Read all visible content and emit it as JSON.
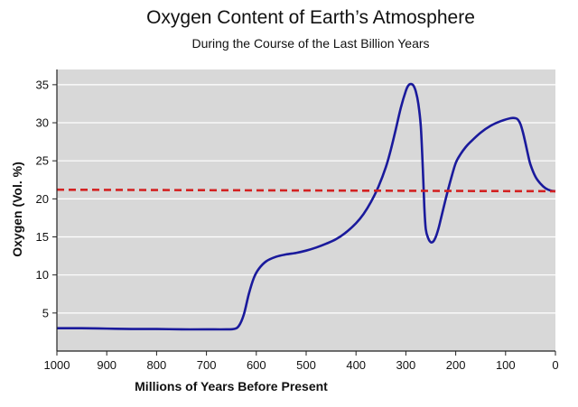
{
  "chart_data": {
    "type": "line",
    "title": "Oxygen Content of Earth’s Atmosphere",
    "subtitle": "During the Course of the Last Billion Years",
    "xlabel": "Millions of Years Before Present",
    "ylabel": "Oxygen (Vol. %)",
    "xlim": [
      1000,
      0
    ],
    "ylim": [
      0,
      37
    ],
    "x_reversed": true,
    "xticks": [
      1000,
      900,
      800,
      700,
      600,
      500,
      400,
      300,
      200,
      100,
      0
    ],
    "yticks": [
      5,
      10,
      15,
      20,
      25,
      30,
      35
    ],
    "grid": "horizontal",
    "legend": "none",
    "series": [
      {
        "color": "#1a1a9c",
        "style": "solid",
        "x": [
          1000,
          950,
          900,
          850,
          800,
          750,
          700,
          660,
          645,
          635,
          625,
          615,
          605,
          595,
          580,
          560,
          540,
          520,
          500,
          480,
          460,
          440,
          420,
          400,
          385,
          370,
          355,
          340,
          330,
          320,
          310,
          300,
          295,
          290,
          285,
          280,
          275,
          270,
          266,
          263,
          260,
          255,
          250,
          245,
          240,
          235,
          230,
          220,
          210,
          200,
          190,
          180,
          170,
          150,
          130,
          110,
          90,
          80,
          75,
          70,
          65,
          60,
          55,
          50,
          40,
          30,
          20,
          10,
          0
        ],
        "y": [
          3.0,
          3.0,
          2.95,
          2.9,
          2.9,
          2.85,
          2.85,
          2.85,
          2.9,
          3.3,
          4.8,
          7.5,
          9.6,
          10.8,
          11.8,
          12.4,
          12.7,
          12.9,
          13.2,
          13.6,
          14.1,
          14.7,
          15.6,
          16.8,
          18.0,
          19.6,
          21.6,
          24.2,
          26.5,
          29.2,
          32.0,
          34.2,
          34.9,
          35.1,
          34.9,
          34.1,
          32.5,
          29.5,
          24.0,
          19.0,
          16.0,
          14.8,
          14.3,
          14.4,
          15.0,
          16.0,
          17.3,
          20.0,
          22.5,
          24.7,
          25.9,
          26.8,
          27.5,
          28.7,
          29.6,
          30.2,
          30.6,
          30.6,
          30.4,
          29.8,
          28.7,
          27.3,
          25.8,
          24.5,
          22.9,
          22.0,
          21.4,
          21.1,
          21.0
        ]
      },
      {
        "color": "#d32222",
        "style": "dashed",
        "x": [
          1000,
          0
        ],
        "y": [
          21.2,
          21.0
        ]
      }
    ]
  }
}
